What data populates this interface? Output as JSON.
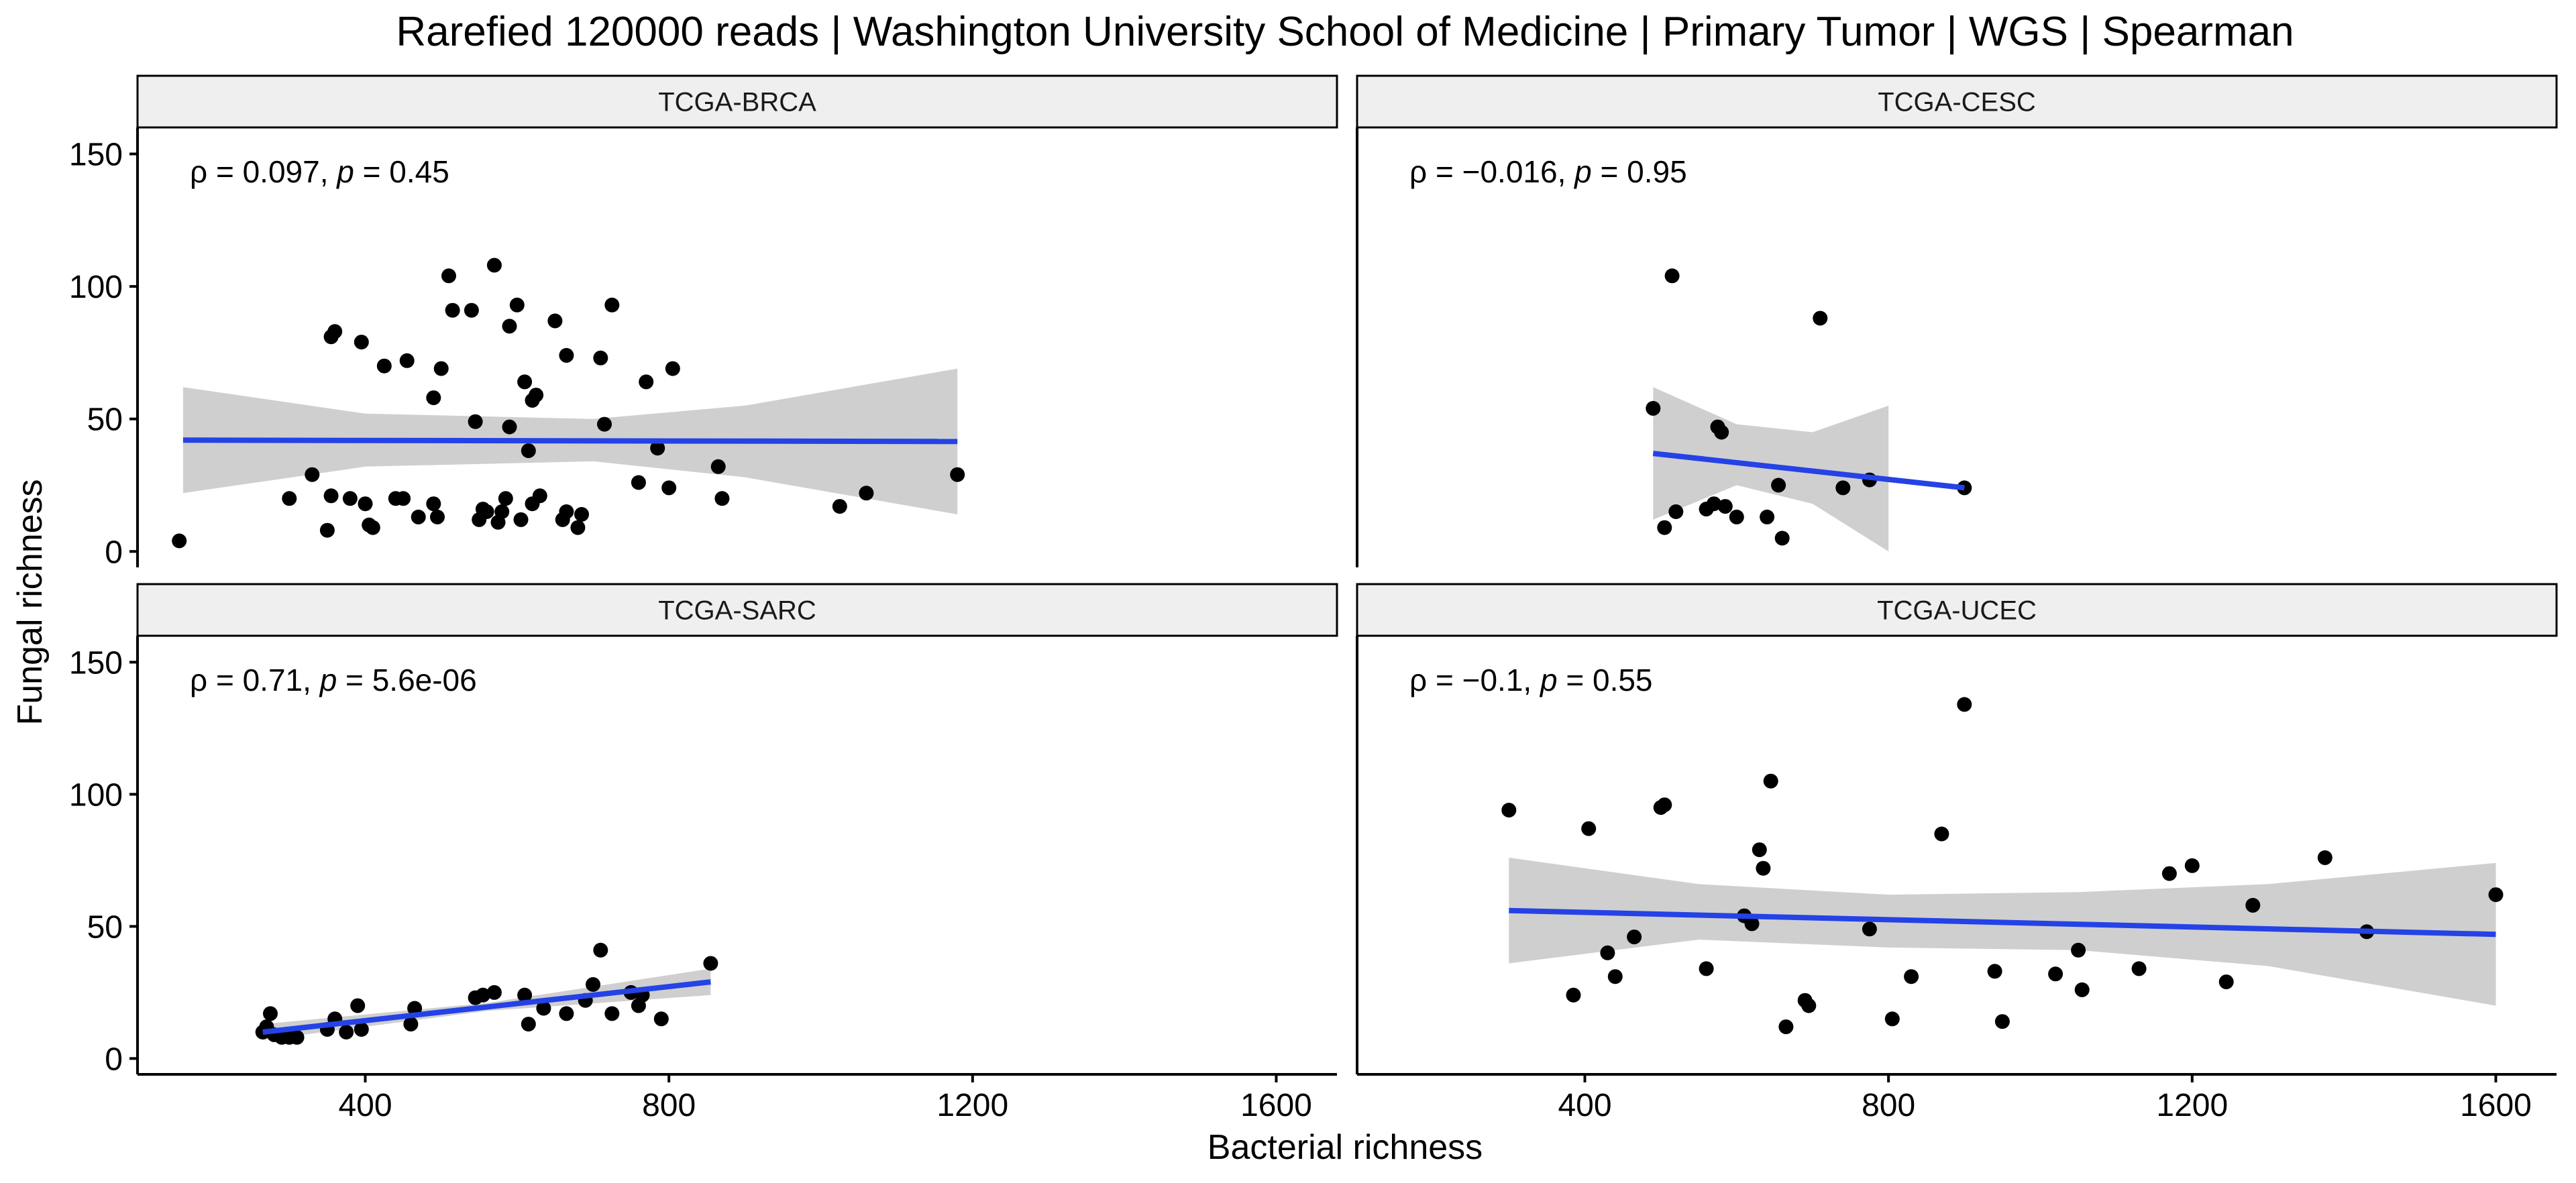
{
  "title": "Rarefied 120000 reads | Washington University School of Medicine | Primary Tumor | WGS | Spearman",
  "x_label": "Bacterial richness",
  "y_label": "Fungal richness",
  "chart_data": {
    "type": "scatter",
    "facet_layout": "2x2 grid",
    "grid": false,
    "xlim": [
      100,
      1680
    ],
    "ylim": [
      -6,
      160
    ],
    "x_ticks": [
      400,
      800,
      1200,
      1600
    ],
    "y_ticks": [
      0,
      50,
      100,
      150
    ],
    "colors": {
      "fit_line": "#2442e6",
      "ci_band": "#cccccc",
      "points": "#000000",
      "strip_bg": "#efefef"
    },
    "panels": [
      {
        "strip": "TCGA-BRCA",
        "stat_prefix": "ρ = 0.097, ",
        "stat_p_symbol": "p",
        "stat_suffix": " = 0.45",
        "fit": {
          "x": [
            160,
            1180
          ],
          "y": [
            42,
            41.5
          ]
        },
        "ci": {
          "x": [
            160,
            400,
            700,
            900,
            1180
          ],
          "upper": [
            62,
            52,
            50,
            55,
            69
          ],
          "lower": [
            22,
            32,
            34,
            28,
            14
          ]
        },
        "points": [
          [
            155,
            4
          ],
          [
            330,
            29
          ],
          [
            300,
            20
          ],
          [
            355,
            81
          ],
          [
            360,
            83
          ],
          [
            380,
            20
          ],
          [
            395,
            79
          ],
          [
            400,
            18
          ],
          [
            405,
            10
          ],
          [
            410,
            9
          ],
          [
            355,
            21
          ],
          [
            350,
            8
          ],
          [
            425,
            70
          ],
          [
            440,
            20
          ],
          [
            450,
            20
          ],
          [
            455,
            72
          ],
          [
            470,
            13
          ],
          [
            490,
            18
          ],
          [
            495,
            13
          ],
          [
            490,
            58
          ],
          [
            500,
            69
          ],
          [
            510,
            104
          ],
          [
            515,
            91
          ],
          [
            540,
            91
          ],
          [
            545,
            49
          ],
          [
            550,
            12
          ],
          [
            555,
            16
          ],
          [
            560,
            15
          ],
          [
            570,
            108
          ],
          [
            575,
            11
          ],
          [
            580,
            15
          ],
          [
            585,
            20
          ],
          [
            590,
            85
          ],
          [
            600,
            93
          ],
          [
            605,
            12
          ],
          [
            610,
            64
          ],
          [
            615,
            38
          ],
          [
            620,
            57
          ],
          [
            620,
            18
          ],
          [
            625,
            59
          ],
          [
            630,
            21
          ],
          [
            650,
            87
          ],
          [
            665,
            74
          ],
          [
            665,
            15
          ],
          [
            660,
            12
          ],
          [
            680,
            9
          ],
          [
            685,
            14
          ],
          [
            710,
            73
          ],
          [
            715,
            48
          ],
          [
            725,
            93
          ],
          [
            760,
            26
          ],
          [
            770,
            64
          ],
          [
            785,
            39
          ],
          [
            800,
            24
          ],
          [
            805,
            69
          ],
          [
            865,
            32
          ],
          [
            870,
            20
          ],
          [
            1025,
            17
          ],
          [
            1060,
            22
          ],
          [
            1180,
            29
          ],
          [
            590,
            47
          ]
        ]
      },
      {
        "strip": "TCGA-CESC",
        "stat_prefix": "ρ = −0.016, ",
        "stat_p_symbol": "p",
        "stat_suffix": " = 0.95",
        "fit": {
          "x": [
            490,
            900
          ],
          "y": [
            37,
            24
          ]
        },
        "ci": {
          "x": [
            490,
            600,
            700,
            800
          ],
          "upper": [
            62,
            48,
            45,
            55
          ],
          "lower": [
            12,
            25,
            18,
            0
          ]
        },
        "points": [
          [
            490,
            54
          ],
          [
            505,
            9
          ],
          [
            515,
            104
          ],
          [
            520,
            15
          ],
          [
            560,
            16
          ],
          [
            570,
            18
          ],
          [
            575,
            47
          ],
          [
            580,
            45
          ],
          [
            585,
            17
          ],
          [
            600,
            13
          ],
          [
            640,
            13
          ],
          [
            655,
            25
          ],
          [
            660,
            5
          ],
          [
            710,
            88
          ],
          [
            740,
            24
          ],
          [
            775,
            27
          ],
          [
            900,
            24
          ]
        ]
      },
      {
        "strip": "TCGA-SARC",
        "stat_prefix": "ρ = 0.71, ",
        "stat_p_symbol": "p",
        "stat_suffix": " = 5.6e-06",
        "fit": {
          "x": [
            265,
            855
          ],
          "y": [
            10,
            29
          ]
        },
        "ci": {
          "x": [
            265,
            560,
            855
          ],
          "upper": [
            13,
            21,
            34
          ],
          "lower": [
            7,
            18,
            24
          ]
        },
        "points": [
          [
            265,
            10
          ],
          [
            270,
            12
          ],
          [
            275,
            17
          ],
          [
            280,
            9
          ],
          [
            290,
            8
          ],
          [
            300,
            8
          ],
          [
            310,
            8
          ],
          [
            350,
            11
          ],
          [
            360,
            15
          ],
          [
            375,
            10
          ],
          [
            390,
            20
          ],
          [
            395,
            11
          ],
          [
            460,
            13
          ],
          [
            465,
            19
          ],
          [
            545,
            23
          ],
          [
            555,
            24
          ],
          [
            570,
            25
          ],
          [
            610,
            24
          ],
          [
            615,
            13
          ],
          [
            635,
            19
          ],
          [
            665,
            17
          ],
          [
            690,
            22
          ],
          [
            700,
            28
          ],
          [
            710,
            41
          ],
          [
            725,
            17
          ],
          [
            750,
            25
          ],
          [
            760,
            20
          ],
          [
            765,
            24
          ],
          [
            790,
            15
          ],
          [
            855,
            36
          ]
        ]
      },
      {
        "strip": "TCGA-UCEC",
        "stat_prefix": "ρ = −0.1, ",
        "stat_p_symbol": "p",
        "stat_suffix": " = 0.55",
        "fit": {
          "x": [
            300,
            1600
          ],
          "y": [
            56,
            47
          ]
        },
        "ci": {
          "x": [
            300,
            550,
            800,
            1050,
            1300,
            1600
          ],
          "upper": [
            76,
            66,
            62,
            63,
            66,
            74
          ],
          "lower": [
            36,
            45,
            42,
            41,
            35,
            20
          ]
        },
        "points": [
          [
            300,
            94
          ],
          [
            385,
            24
          ],
          [
            405,
            87
          ],
          [
            430,
            40
          ],
          [
            440,
            31
          ],
          [
            465,
            46
          ],
          [
            500,
            95
          ],
          [
            505,
            96
          ],
          [
            560,
            34
          ],
          [
            610,
            54
          ],
          [
            620,
            51
          ],
          [
            630,
            79
          ],
          [
            635,
            72
          ],
          [
            645,
            105
          ],
          [
            665,
            12
          ],
          [
            690,
            22
          ],
          [
            695,
            20
          ],
          [
            775,
            49
          ],
          [
            805,
            15
          ],
          [
            830,
            31
          ],
          [
            870,
            85
          ],
          [
            900,
            134
          ],
          [
            940,
            33
          ],
          [
            950,
            14
          ],
          [
            1020,
            32
          ],
          [
            1050,
            41
          ],
          [
            1055,
            26
          ],
          [
            1130,
            34
          ],
          [
            1170,
            70
          ],
          [
            1200,
            73
          ],
          [
            1245,
            29
          ],
          [
            1280,
            58
          ],
          [
            1375,
            76
          ],
          [
            1430,
            48
          ],
          [
            1600,
            62
          ]
        ]
      }
    ]
  }
}
